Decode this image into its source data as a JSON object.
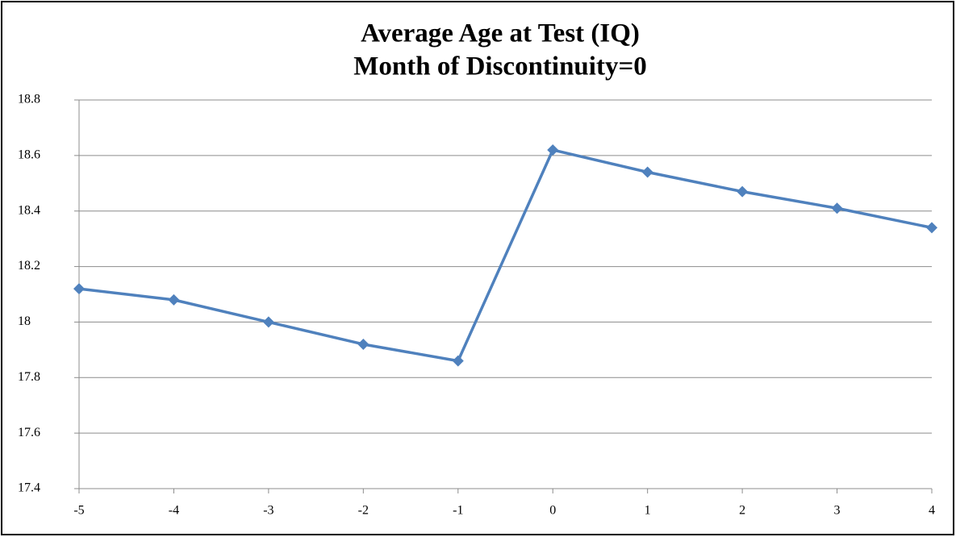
{
  "chart_data": {
    "type": "line",
    "title": "Average Age at Test (IQ)",
    "subtitle": "Month of Discontinuity=0",
    "x": [
      -5,
      -4,
      -3,
      -2,
      -1,
      0,
      1,
      2,
      3,
      4
    ],
    "series": [
      {
        "color": "#4f81bd",
        "values": [
          18.12,
          18.08,
          18.0,
          17.92,
          17.86,
          18.62,
          18.54,
          18.47,
          18.41,
          18.34
        ]
      }
    ],
    "xlim": [
      -5,
      4
    ],
    "xticks": [
      -5,
      -4,
      -3,
      -2,
      -1,
      0,
      1,
      2,
      3,
      4
    ],
    "ylim": [
      17.4,
      18.8
    ],
    "yticks": [
      17.4,
      17.6,
      17.8,
      18,
      18.2,
      18.4,
      18.6,
      18.8
    ],
    "grid": true
  }
}
